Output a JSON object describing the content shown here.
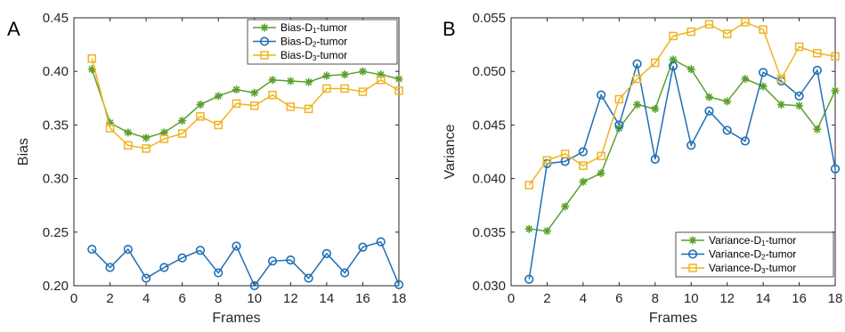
{
  "chart_data": [
    {
      "type": "line",
      "panel_label": "A",
      "xlabel": "Frames",
      "ylabel": "Bias",
      "xlim": [
        0,
        18
      ],
      "ylim": [
        0.2,
        0.45
      ],
      "xticks": [
        0,
        2,
        4,
        6,
        8,
        10,
        12,
        14,
        16,
        18
      ],
      "yticks": [
        0.2,
        0.25,
        0.3,
        0.35,
        0.4,
        0.45
      ],
      "ytick_labels": [
        "0.20",
        "0.25",
        "0.30",
        "0.35",
        "0.40",
        "0.45"
      ],
      "grid": false,
      "legend_position": "top-right",
      "x": [
        1,
        2,
        3,
        4,
        5,
        6,
        7,
        8,
        9,
        10,
        11,
        12,
        13,
        14,
        15,
        16,
        17,
        18
      ],
      "series": [
        {
          "name": "Bias-D",
          "sub": "1",
          "suffix": "-tumor",
          "color": "#5aa02c",
          "marker": "star",
          "values": [
            0.402,
            0.352,
            0.343,
            0.338,
            0.343,
            0.354,
            0.369,
            0.377,
            0.383,
            0.38,
            0.392,
            0.391,
            0.39,
            0.396,
            0.397,
            0.4,
            0.397,
            0.393
          ]
        },
        {
          "name": "Bias-D",
          "sub": "2",
          "suffix": "-tumor",
          "color": "#1f6fb5",
          "marker": "circle",
          "values": [
            0.234,
            0.217,
            0.234,
            0.207,
            0.217,
            0.226,
            0.233,
            0.212,
            0.237,
            0.2,
            0.223,
            0.224,
            0.207,
            0.23,
            0.212,
            0.236,
            0.241,
            0.201
          ]
        },
        {
          "name": "Bias-D",
          "sub": "3",
          "suffix": "-tumor",
          "color": "#f0b323",
          "marker": "square",
          "values": [
            0.412,
            0.347,
            0.331,
            0.328,
            0.337,
            0.342,
            0.358,
            0.35,
            0.37,
            0.368,
            0.378,
            0.367,
            0.365,
            0.384,
            0.384,
            0.381,
            0.392,
            0.382
          ]
        }
      ]
    },
    {
      "type": "line",
      "panel_label": "B",
      "xlabel": "Frames",
      "ylabel": "Variance",
      "xlim": [
        0,
        18
      ],
      "ylim": [
        0.03,
        0.055
      ],
      "xticks": [
        0,
        2,
        4,
        6,
        8,
        10,
        12,
        14,
        16,
        18
      ],
      "yticks": [
        0.03,
        0.035,
        0.04,
        0.045,
        0.05,
        0.055
      ],
      "ytick_labels": [
        "0.030",
        "0.035",
        "0.040",
        "0.045",
        "0.050",
        "0.055"
      ],
      "grid": false,
      "legend_position": "bottom-right",
      "x": [
        1,
        2,
        3,
        4,
        5,
        6,
        7,
        8,
        9,
        10,
        11,
        12,
        13,
        14,
        15,
        16,
        17,
        18
      ],
      "series": [
        {
          "name": "Variance-D",
          "sub": "1",
          "suffix": "-tumor",
          "color": "#5aa02c",
          "marker": "star",
          "values": [
            0.0353,
            0.0351,
            0.0374,
            0.0397,
            0.0405,
            0.0447,
            0.0469,
            0.0465,
            0.0511,
            0.0502,
            0.0476,
            0.0472,
            0.0493,
            0.0486,
            0.0469,
            0.0468,
            0.0446,
            0.0482
          ]
        },
        {
          "name": "Variance-D",
          "sub": "2",
          "suffix": "-tumor",
          "color": "#1f6fb5",
          "marker": "circle",
          "values": [
            0.0306,
            0.0414,
            0.0416,
            0.0425,
            0.0478,
            0.045,
            0.0507,
            0.0418,
            0.0505,
            0.0431,
            0.0463,
            0.0445,
            0.0435,
            0.0499,
            0.0491,
            0.0477,
            0.0501,
            0.0409
          ]
        },
        {
          "name": "Variance-D",
          "sub": "3",
          "suffix": "-tumor",
          "color": "#f0b323",
          "marker": "square",
          "values": [
            0.0394,
            0.0417,
            0.0423,
            0.0412,
            0.0421,
            0.0474,
            0.0493,
            0.0508,
            0.0533,
            0.0537,
            0.0544,
            0.0535,
            0.0546,
            0.0539,
            0.0493,
            0.0523,
            0.0517,
            0.0514
          ]
        }
      ]
    }
  ]
}
